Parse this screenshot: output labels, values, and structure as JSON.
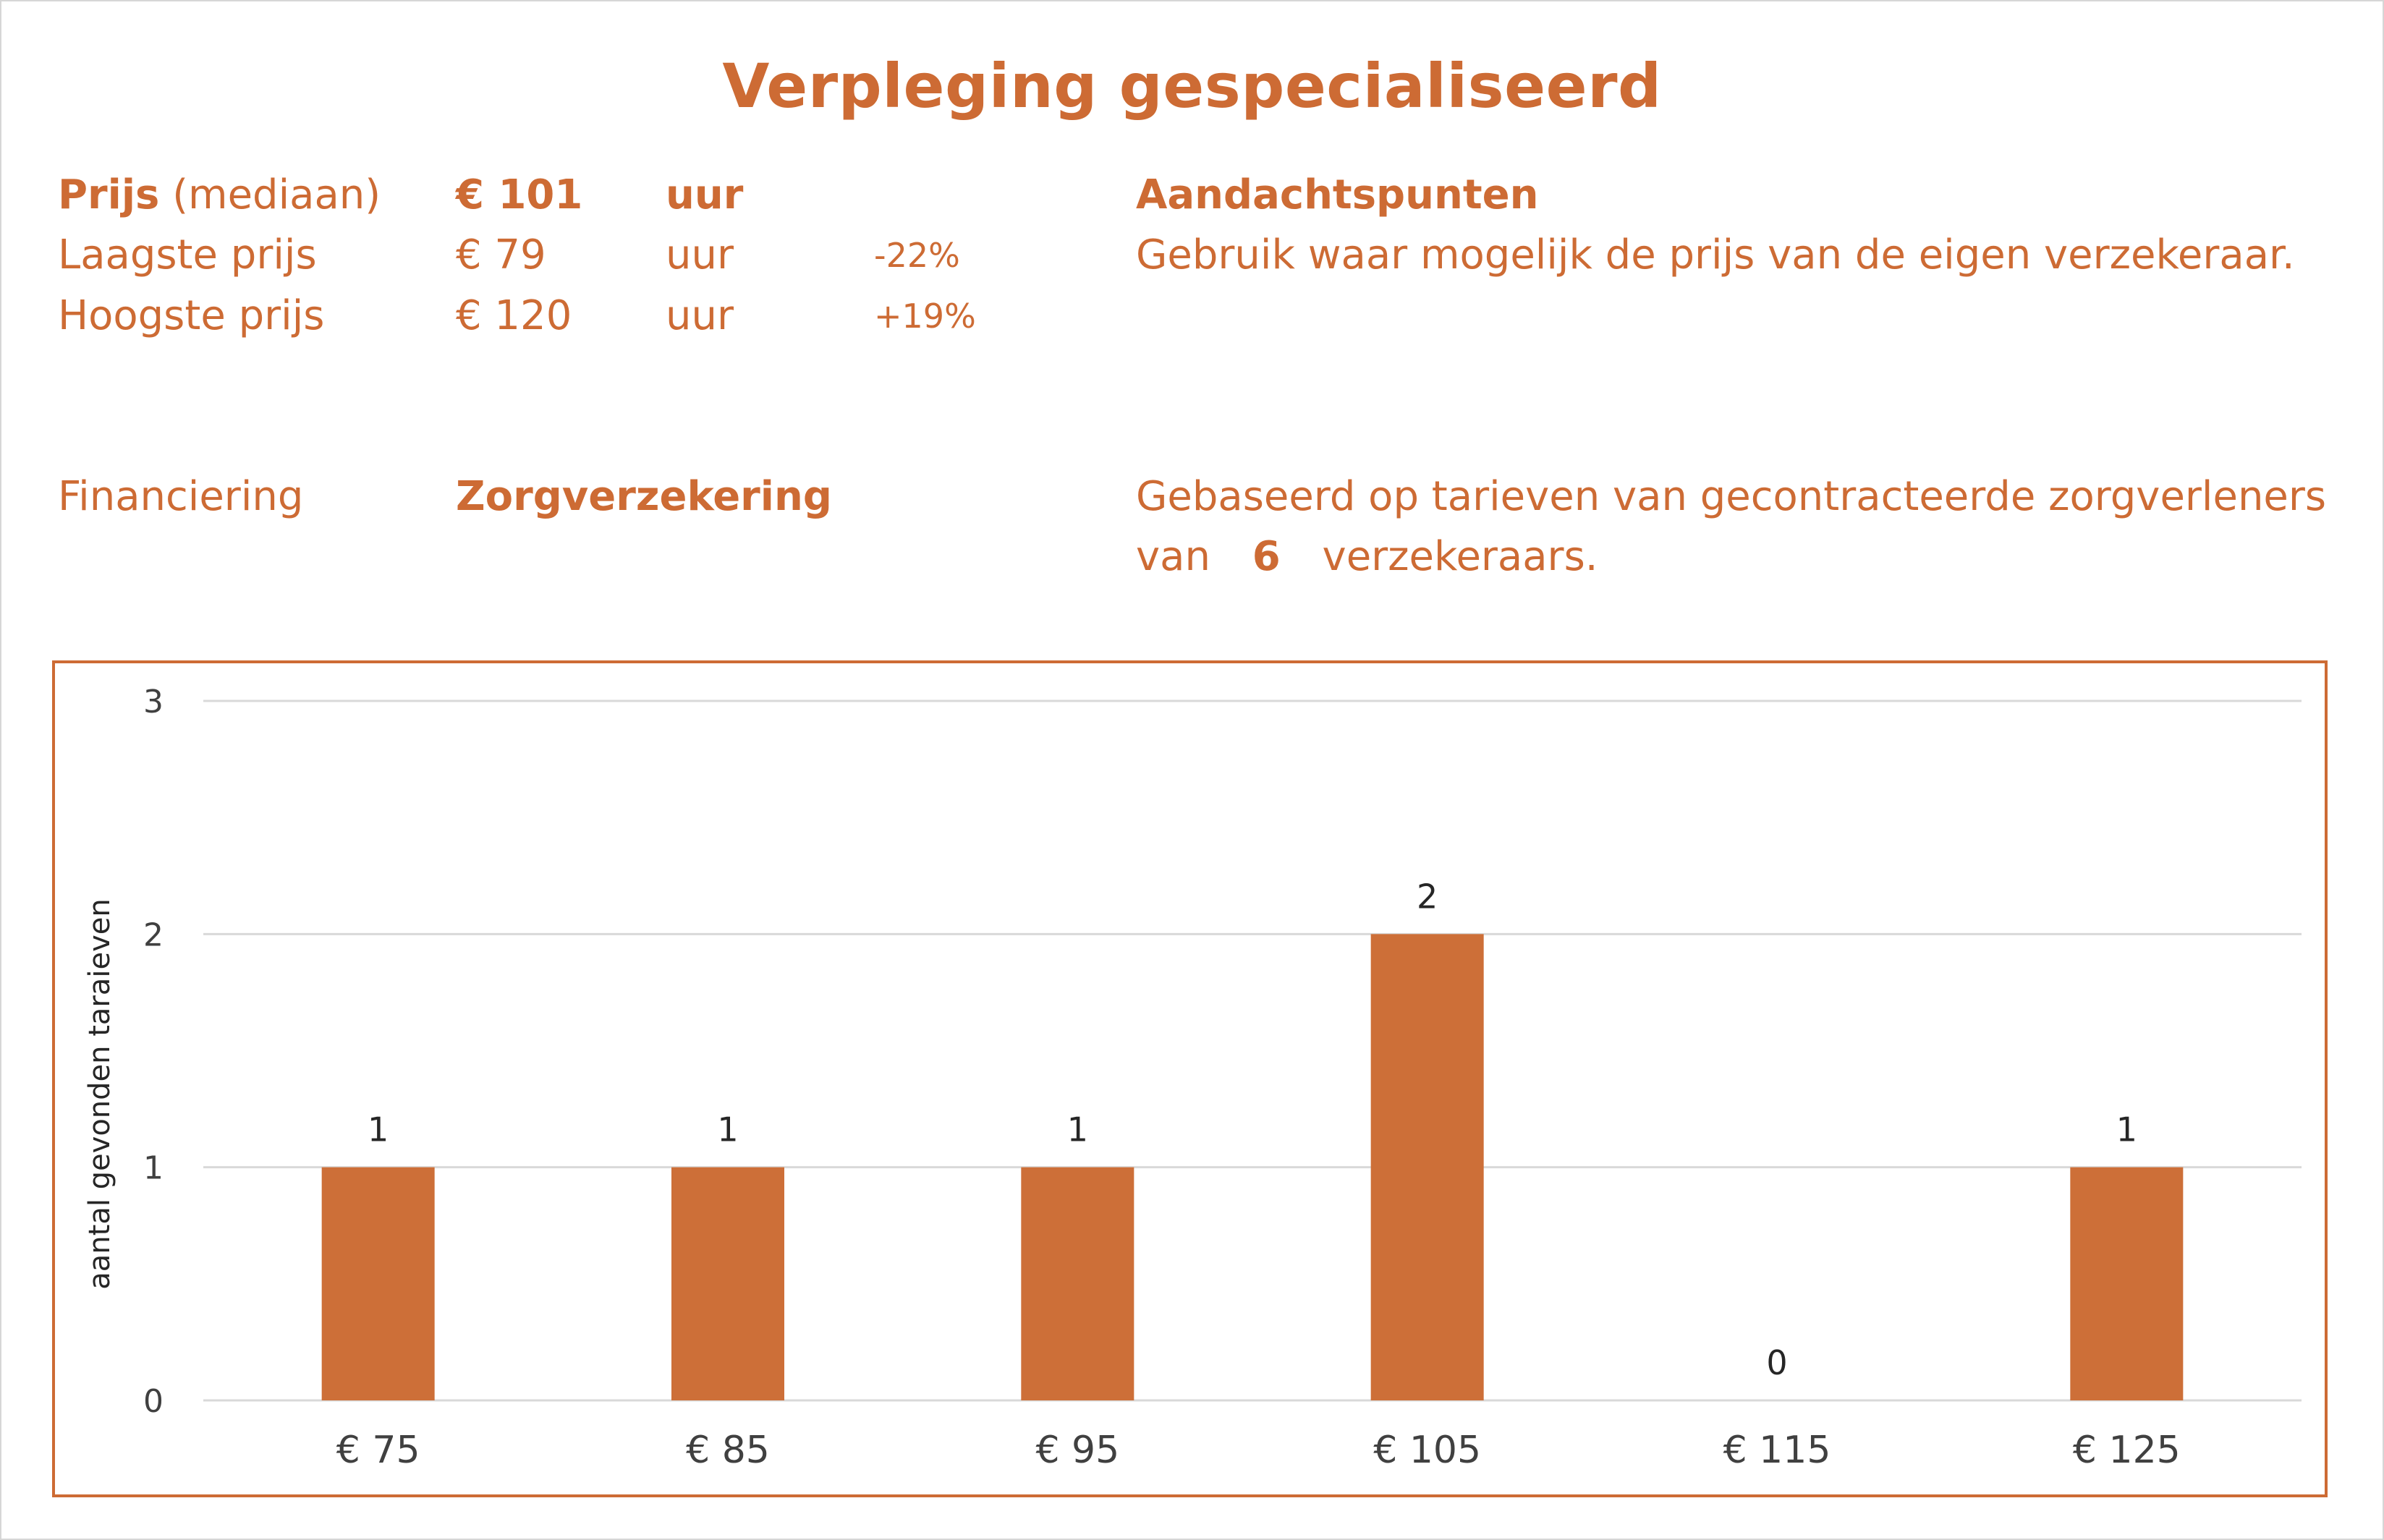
{
  "title": "Verpleging gespecialiseerd",
  "price": {
    "median": {
      "label_bold": "Prijs",
      "label_rest": "(mediaan)",
      "value": "€ 101",
      "unit": "uur"
    },
    "lowest": {
      "label": "Laagste prijs",
      "value": "€ 79",
      "unit": "uur",
      "pct": "-22%"
    },
    "highest": {
      "label": "Hoogste prijs",
      "value": "€ 120",
      "unit": "uur",
      "pct": "+19%"
    }
  },
  "attention": {
    "heading": "Aandachtspunten",
    "text": "Gebruik waar mogelijk de prijs van de eigen verzekeraar."
  },
  "financing": {
    "label": "Financiering",
    "value": "Zorgverzekering",
    "basis_line1": "Gebaseerd op tarieven van gecontracteerde zorgverleners",
    "basis_pre": "van",
    "basis_count": "6",
    "basis_post": "verzekeraars."
  },
  "colors": {
    "accent": "#cd6b34",
    "bar": "#cd6f38",
    "grid": "#d9d9d9",
    "axis_text": "#404040"
  },
  "chart_data": {
    "type": "bar",
    "categories": [
      "€ 75",
      "€ 85",
      "€ 95",
      "€ 105",
      "€ 115",
      "€ 125"
    ],
    "values": [
      1,
      1,
      1,
      2,
      0,
      1
    ],
    "ylabel": "aantal gevonden taraieven",
    "ylim": [
      0,
      3
    ],
    "yticks": [
      0,
      1,
      2,
      3
    ],
    "grid": true,
    "data_labels": true
  }
}
